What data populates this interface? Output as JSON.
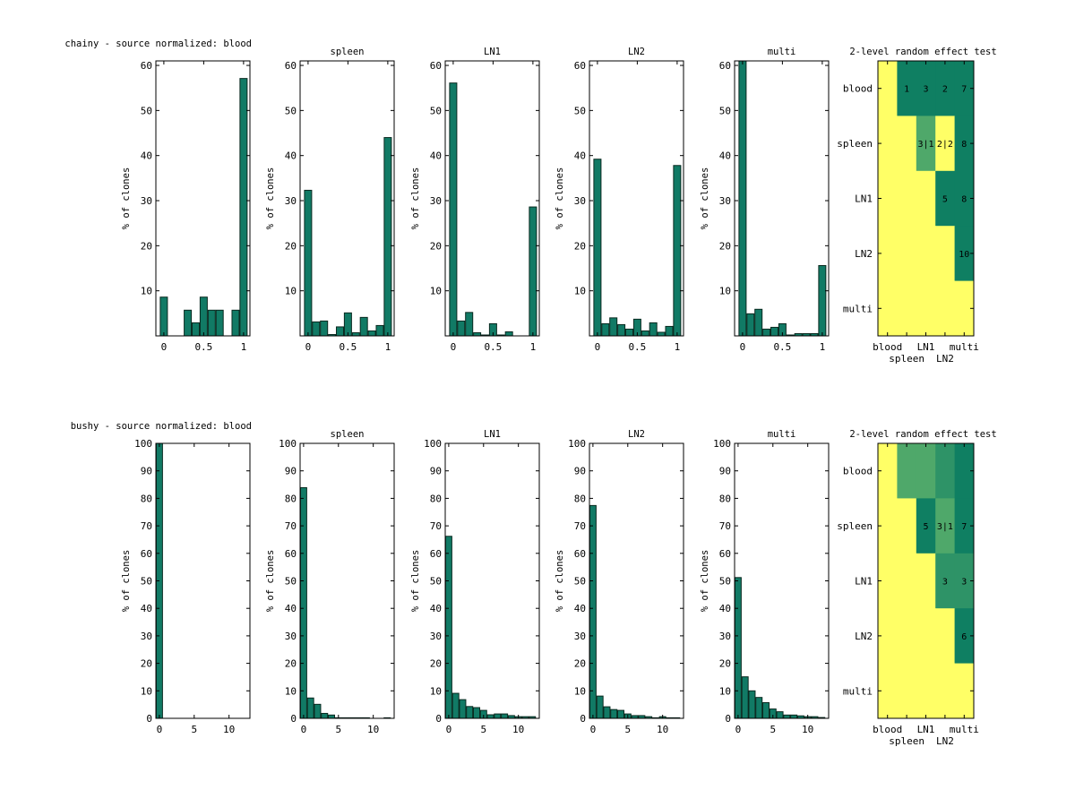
{
  "colors": {
    "bar": "#117a65",
    "bar_edge": "#0a2a20",
    "heat_low": "#ffff66",
    "heat_mid1": "#4fa86a",
    "heat_mid2": "#2e9367",
    "heat_high": "#0f7f62"
  },
  "chart_data": [
    {
      "type": "bar",
      "row": "chainy",
      "title": "chainy - source normalized: blood",
      "ylabel": "% of clones",
      "xlabel": "",
      "ylim": [
        0,
        61
      ],
      "xlim": [
        -0.1,
        1.08
      ],
      "yticks": [
        10,
        20,
        30,
        40,
        50,
        60
      ],
      "xticks": [
        {
          "v": 0,
          "label": "0"
        },
        {
          "v": 0.5,
          "label": "0.5"
        },
        {
          "v": 1,
          "label": "1"
        }
      ],
      "bar_width": 0.09,
      "x": [
        0,
        0.1,
        0.2,
        0.3,
        0.4,
        0.5,
        0.6,
        0.7,
        0.8,
        0.9,
        1.0
      ],
      "values": [
        8.6,
        0,
        0,
        5.7,
        2.9,
        8.6,
        5.7,
        5.7,
        0,
        5.7,
        57.1
      ]
    },
    {
      "type": "bar",
      "row": "chainy",
      "title": "spleen",
      "ylabel": "% of clones",
      "xlabel": "",
      "ylim": [
        0,
        61
      ],
      "xlim": [
        -0.1,
        1.08
      ],
      "yticks": [
        10,
        20,
        30,
        40,
        50,
        60
      ],
      "xticks": [
        {
          "v": 0,
          "label": "0"
        },
        {
          "v": 0.5,
          "label": "0.5"
        },
        {
          "v": 1,
          "label": "1"
        }
      ],
      "bar_width": 0.09,
      "x": [
        0,
        0.1,
        0.2,
        0.3,
        0.4,
        0.5,
        0.6,
        0.7,
        0.8,
        0.9,
        1.0
      ],
      "values": [
        32.3,
        3.1,
        3.3,
        0.3,
        2.0,
        5.1,
        0.7,
        4.1,
        1.1,
        2.3,
        44.0
      ]
    },
    {
      "type": "bar",
      "row": "chainy",
      "title": "LN1",
      "ylabel": "% of clones",
      "xlabel": "",
      "ylim": [
        0,
        61
      ],
      "xlim": [
        -0.1,
        1.08
      ],
      "yticks": [
        10,
        20,
        30,
        40,
        50,
        60
      ],
      "xticks": [
        {
          "v": 0,
          "label": "0"
        },
        {
          "v": 0.5,
          "label": "0.5"
        },
        {
          "v": 1,
          "label": "1"
        }
      ],
      "bar_width": 0.09,
      "x": [
        0,
        0.1,
        0.2,
        0.3,
        0.4,
        0.5,
        0.6,
        0.7,
        0.8,
        0.9,
        1.0
      ],
      "values": [
        56.1,
        3.3,
        5.2,
        0.7,
        0.2,
        2.7,
        0.2,
        0.9,
        0,
        0,
        28.6
      ]
    },
    {
      "type": "bar",
      "row": "chainy",
      "title": "LN2",
      "ylabel": "% of clones",
      "xlabel": "",
      "ylim": [
        0,
        61
      ],
      "xlim": [
        -0.1,
        1.08
      ],
      "yticks": [
        10,
        20,
        30,
        40,
        50,
        60
      ],
      "xticks": [
        {
          "v": 0,
          "label": "0"
        },
        {
          "v": 0.5,
          "label": "0.5"
        },
        {
          "v": 1,
          "label": "1"
        }
      ],
      "bar_width": 0.09,
      "x": [
        0,
        0.1,
        0.2,
        0.3,
        0.4,
        0.5,
        0.6,
        0.7,
        0.8,
        0.9,
        1.0
      ],
      "values": [
        39.2,
        2.7,
        4.0,
        2.5,
        1.5,
        3.7,
        1.1,
        2.9,
        0.8,
        2.1,
        37.8
      ]
    },
    {
      "type": "bar",
      "row": "chainy",
      "title": "multi",
      "ylabel": "% of clones",
      "xlabel": "",
      "ylim": [
        0,
        61
      ],
      "xlim": [
        -0.1,
        1.08
      ],
      "yticks": [
        10,
        20,
        30,
        40,
        50,
        60
      ],
      "xticks": [
        {
          "v": 0,
          "label": "0"
        },
        {
          "v": 0.5,
          "label": "0.5"
        },
        {
          "v": 1,
          "label": "1"
        }
      ],
      "bar_width": 0.09,
      "x": [
        0,
        0.1,
        0.2,
        0.3,
        0.4,
        0.5,
        0.6,
        0.7,
        0.8,
        0.9,
        1.0
      ],
      "values": [
        61.0,
        4.9,
        5.9,
        1.5,
        1.9,
        2.7,
        0.2,
        0.5,
        0.5,
        0.5,
        15.6
      ]
    },
    {
      "type": "heatmap",
      "row": "chainy",
      "title": "2-level random effect test",
      "xticklabels": [
        "blood",
        "spleen",
        "LN1",
        "LN2",
        "multi"
      ],
      "yticklabels": [
        "blood",
        "spleen",
        "LN1",
        "LN2",
        "multi"
      ],
      "levels": [
        [
          0,
          3,
          3,
          3,
          3
        ],
        [
          0,
          0,
          1,
          0,
          3
        ],
        [
          0,
          0,
          0,
          3,
          3
        ],
        [
          0,
          0,
          0,
          0,
          3
        ],
        [
          0,
          0,
          0,
          0,
          0
        ]
      ],
      "labels": [
        [
          "",
          "1",
          "3",
          "2",
          "7"
        ],
        [
          "",
          "",
          "3|1",
          "2|2",
          "8"
        ],
        [
          "",
          "",
          "",
          "5",
          "8"
        ],
        [
          "",
          "",
          "",
          "",
          "10"
        ],
        [
          "",
          "",
          "",
          "",
          ""
        ]
      ]
    },
    {
      "type": "bar",
      "row": "bushy",
      "title": "bushy - source normalized: blood",
      "ylabel": "% of clones",
      "xlabel": "",
      "ylim": [
        0,
        100
      ],
      "xlim": [
        -0.5,
        13
      ],
      "yticks": [
        0,
        10,
        20,
        30,
        40,
        50,
        60,
        70,
        80,
        90,
        100
      ],
      "xticks": [
        {
          "v": 0,
          "label": "0"
        },
        {
          "v": 5,
          "label": "5"
        },
        {
          "v": 10,
          "label": "10"
        }
      ],
      "bar_width": 0.9,
      "x": [
        0
      ],
      "values": [
        100
      ]
    },
    {
      "type": "bar",
      "row": "bushy",
      "title": "spleen",
      "ylabel": "% of clones",
      "xlabel": "",
      "ylim": [
        0,
        100
      ],
      "xlim": [
        -0.5,
        13
      ],
      "yticks": [
        0,
        10,
        20,
        30,
        40,
        50,
        60,
        70,
        80,
        90,
        100
      ],
      "xticks": [
        {
          "v": 0,
          "label": "0"
        },
        {
          "v": 5,
          "label": "5"
        },
        {
          "v": 10,
          "label": "10"
        }
      ],
      "bar_width": 0.9,
      "x": [
        0,
        1,
        2,
        3,
        4,
        5,
        6,
        7,
        8,
        9,
        10,
        11,
        12
      ],
      "values": [
        83.9,
        7.4,
        5.1,
        1.8,
        1.2,
        0.2,
        0.2,
        0.2,
        0.2,
        0.2,
        0,
        0,
        0.2
      ]
    },
    {
      "type": "bar",
      "row": "bushy",
      "title": "LN1",
      "ylabel": "% of clones",
      "xlabel": "",
      "ylim": [
        0,
        100
      ],
      "xlim": [
        -0.5,
        13
      ],
      "yticks": [
        0,
        10,
        20,
        30,
        40,
        50,
        60,
        70,
        80,
        90,
        100
      ],
      "xticks": [
        {
          "v": 0,
          "label": "0"
        },
        {
          "v": 5,
          "label": "5"
        },
        {
          "v": 10,
          "label": "10"
        }
      ],
      "bar_width": 0.9,
      "x": [
        0,
        1,
        2,
        3,
        4,
        5,
        6,
        7,
        8,
        9,
        10,
        11,
        12
      ],
      "values": [
        66.2,
        9.1,
        6.8,
        4.3,
        3.9,
        2.9,
        1.3,
        1.6,
        1.6,
        1.0,
        0.6,
        0.6,
        0.6
      ]
    },
    {
      "type": "bar",
      "row": "bushy",
      "title": "LN2",
      "ylabel": "% of clones",
      "xlabel": "",
      "ylim": [
        0,
        100
      ],
      "xlim": [
        -0.5,
        13
      ],
      "yticks": [
        0,
        10,
        20,
        30,
        40,
        50,
        60,
        70,
        80,
        90,
        100
      ],
      "xticks": [
        {
          "v": 0,
          "label": "0"
        },
        {
          "v": 5,
          "label": "5"
        },
        {
          "v": 10,
          "label": "10"
        }
      ],
      "bar_width": 0.9,
      "x": [
        0,
        1,
        2,
        3,
        4,
        5,
        6,
        7,
        8,
        9,
        10,
        11,
        12
      ],
      "values": [
        77.4,
        8.1,
        4.2,
        3.2,
        2.9,
        1.6,
        1.0,
        1.0,
        0.6,
        0.2,
        0.6,
        0.2,
        0.2
      ]
    },
    {
      "type": "bar",
      "row": "bushy",
      "title": "multi",
      "ylabel": "% of clones",
      "xlabel": "",
      "ylim": [
        0,
        100
      ],
      "xlim": [
        -0.5,
        13
      ],
      "yticks": [
        0,
        10,
        20,
        30,
        40,
        50,
        60,
        70,
        80,
        90,
        100
      ],
      "xticks": [
        {
          "v": 0,
          "label": "0"
        },
        {
          "v": 5,
          "label": "5"
        },
        {
          "v": 10,
          "label": "10"
        }
      ],
      "bar_width": 0.9,
      "x": [
        0,
        1,
        2,
        3,
        4,
        5,
        6,
        7,
        8,
        9,
        10,
        11,
        12
      ],
      "values": [
        51.2,
        15.1,
        10.0,
        7.6,
        5.7,
        3.4,
        2.4,
        1.2,
        1.2,
        0.9,
        0.6,
        0.6,
        0.3
      ]
    },
    {
      "type": "heatmap",
      "row": "bushy",
      "title": "2-level random effect test",
      "xticklabels": [
        "blood",
        "spleen",
        "LN1",
        "LN2",
        "multi"
      ],
      "yticklabels": [
        "blood",
        "spleen",
        "LN1",
        "LN2",
        "multi"
      ],
      "levels": [
        [
          0,
          1,
          1,
          2,
          3
        ],
        [
          0,
          0,
          3,
          1,
          3
        ],
        [
          0,
          0,
          0,
          2,
          2
        ],
        [
          0,
          0,
          0,
          0,
          3
        ],
        [
          0,
          0,
          0,
          0,
          0
        ]
      ],
      "labels": [
        [
          "",
          "",
          "",
          "",
          ""
        ],
        [
          "",
          "",
          "5",
          "3|1",
          "7"
        ],
        [
          "",
          "",
          "",
          "3",
          "3"
        ],
        [
          "",
          "",
          "",
          "",
          "6"
        ],
        [
          "",
          "",
          "",
          "",
          ""
        ]
      ]
    }
  ]
}
